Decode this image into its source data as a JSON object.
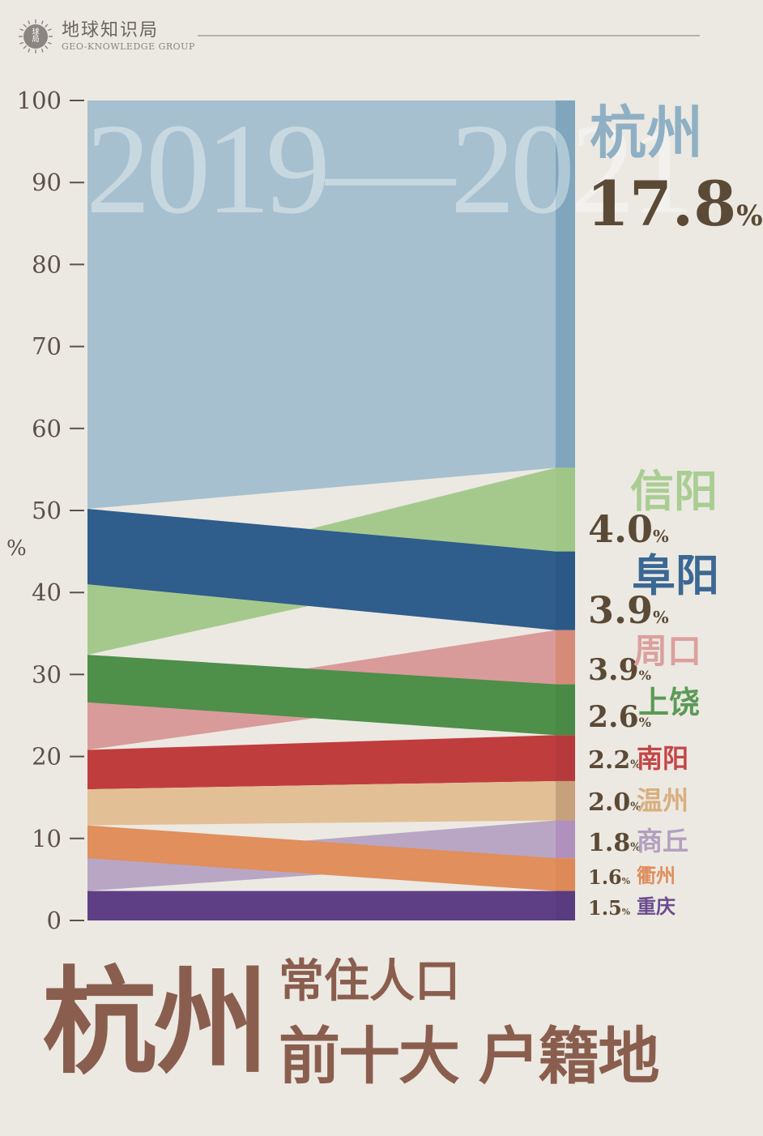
{
  "brand": {
    "name": "地球知识局",
    "en": "GEO-KNOWLEDGE GROUP",
    "logo_text_top": "球",
    "logo_text_bottom": "局"
  },
  "title": {
    "main": "杭州",
    "line1": "常住人口",
    "line2": "前十大 户籍地"
  },
  "chart_data": {
    "type": "area",
    "watermark": "2019—2021",
    "ylabel": "%",
    "ylim": [
      0,
      100
    ],
    "yticks": [
      0,
      10,
      20,
      30,
      40,
      50,
      60,
      70,
      80,
      90,
      100
    ],
    "series": [
      {
        "name": "杭州",
        "value_label": "17.8",
        "unit": "%",
        "color": "#a6c0cf",
        "bar_color": "#7fa6bd",
        "label_color": "#8fb0c4",
        "start": [
          50.2,
          100
        ],
        "end": [
          55.2,
          100
        ]
      },
      {
        "name": "信阳",
        "value_label": "4.0",
        "unit": "%",
        "color": "#a5c98d",
        "bar_color": "#9fc686",
        "label_color": "#a9cd93",
        "start": [
          32.4,
          41.0
        ],
        "end": [
          45.0,
          55.2
        ]
      },
      {
        "name": "阜阳",
        "value_label": "3.9",
        "unit": "%",
        "color": "#2f5d8c",
        "bar_color": "#2b5887",
        "label_color": "#3b6894",
        "start": [
          41.0,
          50.2
        ],
        "end": [
          35.4,
          45.0
        ]
      },
      {
        "name": "周口",
        "value_label": "3.9",
        "unit": "%",
        "color": "#d89b9a",
        "bar_color": "#d58b78",
        "label_color": "#dba09e",
        "start": [
          20.8,
          26.6
        ],
        "end": [
          28.8,
          35.4
        ]
      },
      {
        "name": "上饶",
        "value_label": "2.6",
        "unit": "%",
        "color": "#4e8f4a",
        "bar_color": "#4a8a47",
        "label_color": "#5c9a57",
        "start": [
          26.6,
          32.4
        ],
        "end": [
          22.6,
          28.8
        ]
      },
      {
        "name": "南阳",
        "value_label": "2.2",
        "unit": "%",
        "color": "#c03d3e",
        "bar_color": "#b63a3b",
        "label_color": "#c44648",
        "start": [
          16.0,
          20.8
        ],
        "end": [
          17.0,
          22.6
        ]
      },
      {
        "name": "温州",
        "value_label": "2.0",
        "unit": "%",
        "color": "#e3bf96",
        "bar_color": "#c7a07c",
        "label_color": "#d9ae7f",
        "start": [
          11.6,
          16.0
        ],
        "end": [
          12.2,
          17.0
        ]
      },
      {
        "name": "商丘",
        "value_label": "1.8",
        "unit": "%",
        "color": "#b9a6c4",
        "bar_color": "#b090bd",
        "label_color": "#b39fbf",
        "start": [
          3.6,
          7.6
        ],
        "end": [
          7.6,
          12.2
        ]
      },
      {
        "name": "衢州",
        "value_label": "1.6",
        "unit": "%",
        "color": "#e08f5d",
        "bar_color": "#de8a58",
        "label_color": "#df8e5d",
        "start": [
          7.6,
          11.6
        ],
        "end": [
          3.6,
          7.6
        ]
      },
      {
        "name": "重庆",
        "value_label": "1.5",
        "unit": "%",
        "color": "#5e3f86",
        "bar_color": "#593c80",
        "label_color": "#6a4b8e",
        "start": [
          0,
          3.6
        ],
        "end": [
          0,
          3.6
        ]
      }
    ]
  }
}
